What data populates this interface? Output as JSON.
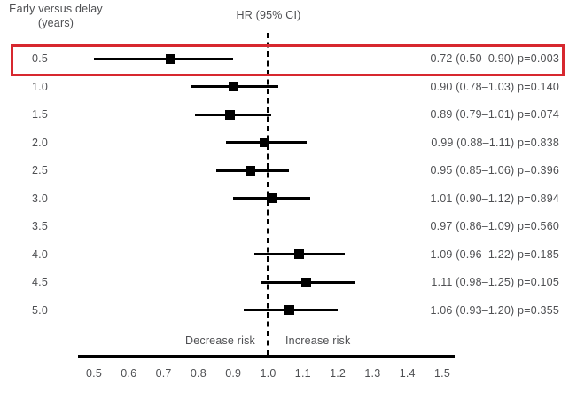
{
  "left_header": {
    "line1": "Early versus delay",
    "line2": "(years)"
  },
  "plot_header": "HR (95% CI)",
  "axis": {
    "tick_labels": [
      "0.5",
      "0.6",
      "0.7",
      "0.8",
      "0.9",
      "1.0",
      "1.1",
      "1.2",
      "1.3",
      "1.4",
      "1.5"
    ],
    "decrease_label": "Decrease risk",
    "increase_label": "Increase risk"
  },
  "colors": {
    "highlight": "#d7282f",
    "marker": "#000000",
    "text": "#4e4f52"
  },
  "chart_data": {
    "type": "forest",
    "title": "HR (95% CI)",
    "row_axis_label": "Early versus delay (years)",
    "xlim": [
      0.5,
      1.5
    ],
    "reference_line": 1.0,
    "x_ticks": [
      0.5,
      0.6,
      0.7,
      0.8,
      0.9,
      1.0,
      1.1,
      1.2,
      1.3,
      1.4,
      1.5
    ],
    "decrease_label": "Decrease risk",
    "increase_label": "Increase risk",
    "rows": [
      {
        "label": "0.5",
        "hr": 0.72,
        "ci": [
          0.5,
          0.9
        ],
        "p": "0.003",
        "display": "0.72 (0.50–0.90) p=0.003",
        "plotted": true,
        "highlighted": true
      },
      {
        "label": "1.0",
        "hr": 0.9,
        "ci": [
          0.78,
          1.03
        ],
        "p": "0.140",
        "display": "0.90 (0.78–1.03) p=0.140",
        "plotted": true,
        "highlighted": false
      },
      {
        "label": "1.5",
        "hr": 0.89,
        "ci": [
          0.79,
          1.01
        ],
        "p": "0.074",
        "display": "0.89 (0.79–1.01) p=0.074",
        "plotted": true,
        "highlighted": false
      },
      {
        "label": "2.0",
        "hr": 0.99,
        "ci": [
          0.88,
          1.11
        ],
        "p": "0.838",
        "display": "0.99 (0.88–1.11) p=0.838",
        "plotted": true,
        "highlighted": false
      },
      {
        "label": "2.5",
        "hr": 0.95,
        "ci": [
          0.85,
          1.06
        ],
        "p": "0.396",
        "display": "0.95 (0.85–1.06) p=0.396",
        "plotted": true,
        "highlighted": false
      },
      {
        "label": "3.0",
        "hr": 1.01,
        "ci": [
          0.9,
          1.12
        ],
        "p": "0.894",
        "display": "1.01 (0.90–1.12) p=0.894",
        "plotted": true,
        "highlighted": false
      },
      {
        "label": "3.5",
        "hr": 0.97,
        "ci": [
          0.86,
          1.09
        ],
        "p": "0.560",
        "display": "0.97 (0.86–1.09) p=0.560",
        "plotted": false,
        "highlighted": false
      },
      {
        "label": "4.0",
        "hr": 1.09,
        "ci": [
          0.96,
          1.22
        ],
        "p": "0.185",
        "display": "1.09 (0.96–1.22) p=0.185",
        "plotted": true,
        "highlighted": false
      },
      {
        "label": "4.5",
        "hr": 1.11,
        "ci": [
          0.98,
          1.25
        ],
        "p": "0.105",
        "display": "1.11 (0.98–1.25) p=0.105",
        "plotted": true,
        "highlighted": false
      },
      {
        "label": "5.0",
        "hr": 1.06,
        "ci": [
          0.93,
          1.2
        ],
        "p": "0.355",
        "display": "1.06 (0.93–1.20) p=0.355",
        "plotted": true,
        "highlighted": false
      }
    ]
  }
}
